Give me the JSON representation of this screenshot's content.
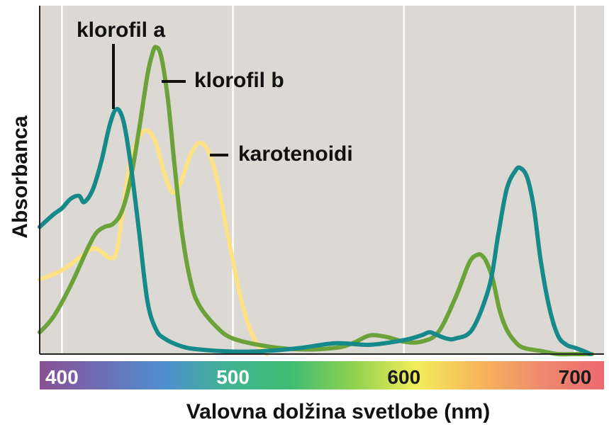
{
  "chart_data": {
    "type": "line",
    "title": "",
    "xlabel": "Valovna dolžina svetlobe (nm)",
    "ylabel": "Absorbanca",
    "xlim": [
      387,
      717
    ],
    "ylim": [
      0,
      1
    ],
    "x_ticks": [
      400,
      500,
      600,
      700
    ],
    "grid": true,
    "colors": {
      "background": "#dcd8d3",
      "grid": "#ffffff",
      "spectrum": [
        "#8a4f93",
        "#6d6fb6",
        "#4f8fd0",
        "#41b392",
        "#3fbd74",
        "#8fd14f",
        "#f2ee5a",
        "#f7b65a",
        "#ee8a6e",
        "#ee6a6f"
      ]
    },
    "series": [
      {
        "name": "klorofil a",
        "color": "#16898a",
        "x": [
          387,
          395,
          400,
          405,
          410,
          413,
          418,
          423,
          428,
          432,
          436,
          440,
          445,
          450,
          455,
          460,
          470,
          480,
          500,
          520,
          540,
          560,
          580,
          600,
          610,
          615,
          620,
          625,
          630,
          640,
          650,
          655,
          660,
          665,
          668,
          672,
          676,
          680,
          685,
          690,
          695,
          700,
          705,
          709
        ],
        "values": [
          0.41,
          0.45,
          0.47,
          0.5,
          0.51,
          0.49,
          0.53,
          0.62,
          0.74,
          0.79,
          0.75,
          0.62,
          0.4,
          0.17,
          0.08,
          0.05,
          0.025,
          0.015,
          0.008,
          0.01,
          0.02,
          0.035,
          0.03,
          0.045,
          0.06,
          0.07,
          0.06,
          0.05,
          0.05,
          0.08,
          0.22,
          0.38,
          0.53,
          0.59,
          0.6,
          0.57,
          0.47,
          0.3,
          0.15,
          0.06,
          0.03,
          0.02,
          0.01,
          0.0
        ]
      },
      {
        "name": "klorofil b",
        "color": "#6ba33a",
        "x": [
          387,
          395,
          405,
          415,
          420,
          425,
          430,
          435,
          440,
          445,
          450,
          453,
          455,
          458,
          462,
          466,
          470,
          475,
          480,
          490,
          500,
          520,
          540,
          560,
          570,
          580,
          590,
          600,
          610,
          620,
          630,
          637,
          640,
          643,
          645,
          648,
          652,
          656,
          660,
          665,
          670,
          680,
          690,
          700,
          710
        ],
        "values": [
          0.07,
          0.12,
          0.22,
          0.34,
          0.39,
          0.41,
          0.42,
          0.46,
          0.56,
          0.72,
          0.9,
          0.97,
          0.99,
          0.96,
          0.82,
          0.6,
          0.4,
          0.24,
          0.16,
          0.09,
          0.05,
          0.025,
          0.015,
          0.02,
          0.035,
          0.06,
          0.055,
          0.04,
          0.04,
          0.07,
          0.18,
          0.28,
          0.31,
          0.32,
          0.32,
          0.3,
          0.24,
          0.14,
          0.08,
          0.04,
          0.02,
          0.01,
          0.0,
          0.0,
          0.0
        ]
      },
      {
        "name": "karotenoidi",
        "color": "#fde185",
        "x": [
          387,
          400,
          410,
          418,
          423,
          428,
          432,
          436,
          440,
          445,
          450,
          455,
          460,
          465,
          470,
          475,
          480,
          485,
          490,
          495,
          500,
          505,
          510,
          515,
          518,
          520
        ],
        "values": [
          0.24,
          0.27,
          0.31,
          0.34,
          0.33,
          0.31,
          0.33,
          0.48,
          0.62,
          0.7,
          0.72,
          0.68,
          0.58,
          0.52,
          0.56,
          0.64,
          0.68,
          0.66,
          0.58,
          0.44,
          0.3,
          0.17,
          0.08,
          0.025,
          0.01,
          0.0
        ]
      }
    ],
    "labels": {
      "chl_a": "klorofil a",
      "chl_b": "klorofil b",
      "carot": "karotenoidi"
    }
  }
}
